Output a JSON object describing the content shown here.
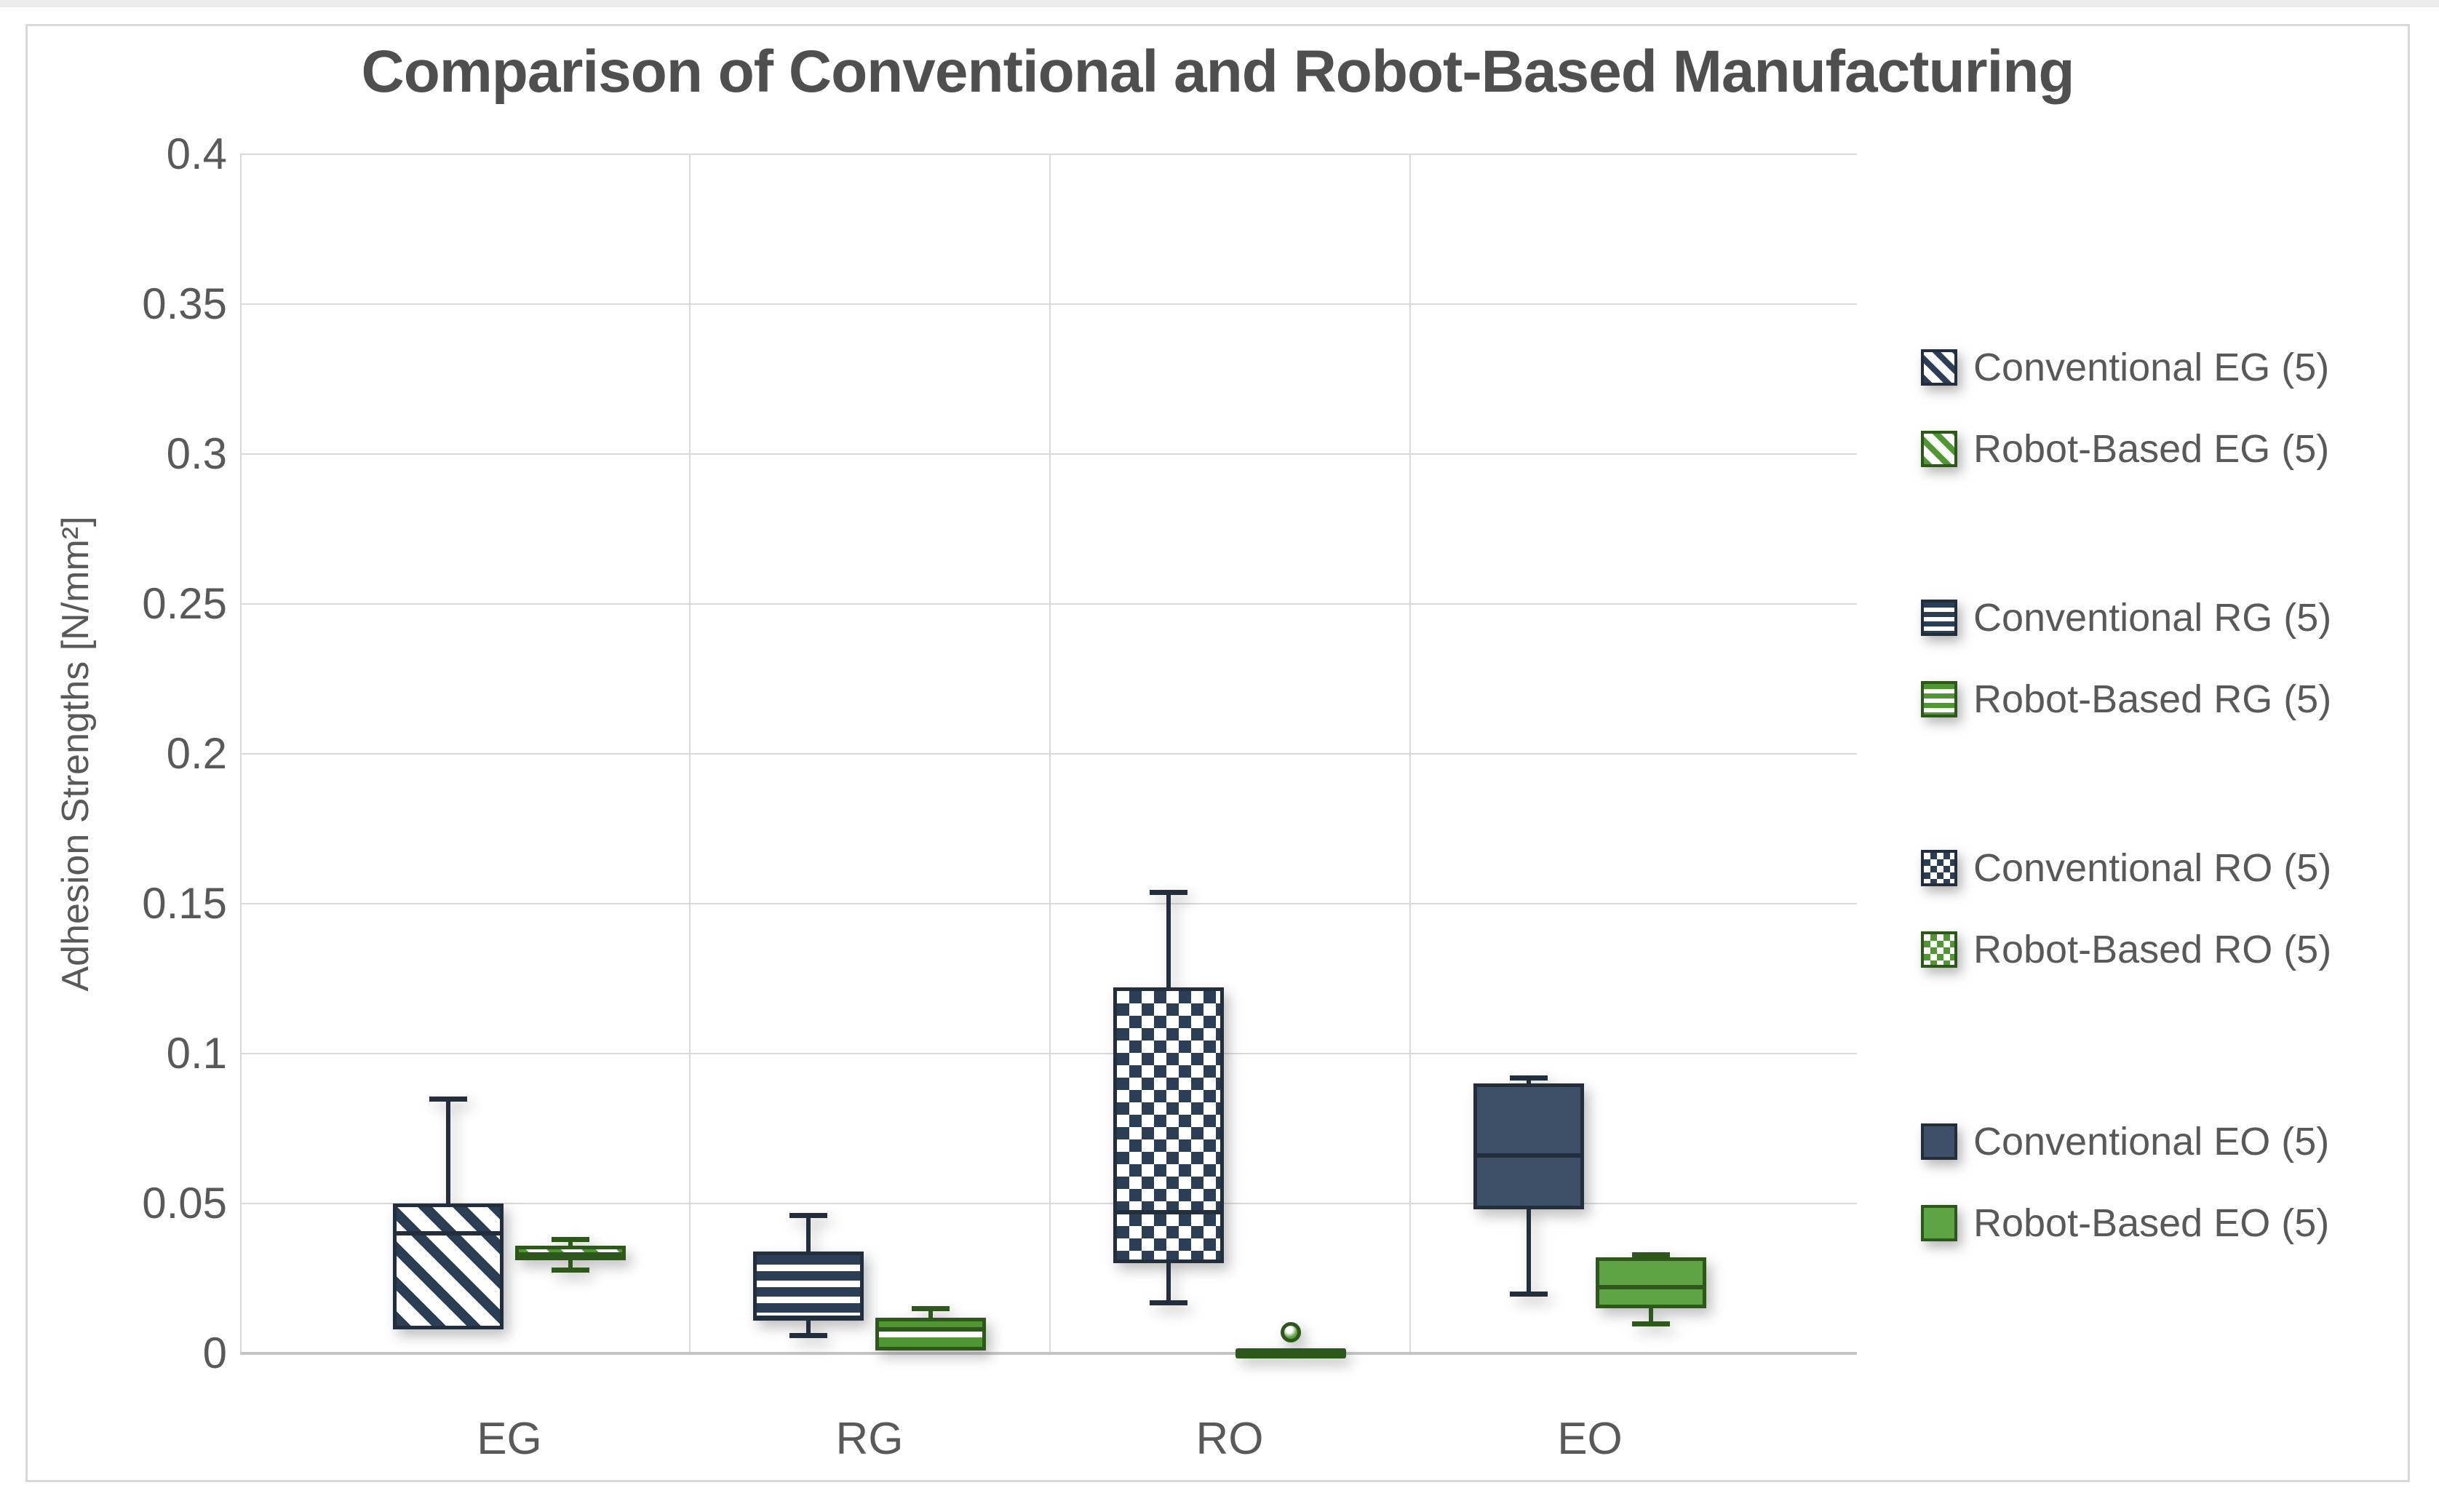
{
  "window": {
    "background_color": "#ffffff",
    "frame_border_color": "#d9d9d9"
  },
  "chart_data": {
    "type": "boxplot",
    "title": "Comparison of Conventional and Robot-Based Manufacturing",
    "xlabel": "",
    "ylabel": "Adhesion Strengths [N/mm²]",
    "ylim": [
      0,
      0.4
    ],
    "yticks": [
      {
        "value": 0.4,
        "label": "0.4"
      },
      {
        "value": 0.35,
        "label": "0.35"
      },
      {
        "value": 0.3,
        "label": "0.3"
      },
      {
        "value": 0.25,
        "label": "0.25"
      },
      {
        "value": 0.2,
        "label": "0.2"
      },
      {
        "value": 0.15,
        "label": "0.15"
      },
      {
        "value": 0.1,
        "label": "0.1"
      },
      {
        "value": 0.05,
        "label": "0.05"
      },
      {
        "value": 0,
        "label": "0"
      }
    ],
    "categories": [
      "EG",
      "RG",
      "RO",
      "EO"
    ],
    "grid": "on",
    "legend_position": "right",
    "colors": {
      "conventional": {
        "fill": "#3e5067",
        "pattern": "#2c3e55",
        "line": "#232e3d"
      },
      "robot": {
        "fill": "#5ea344",
        "pattern": "#4f9733",
        "line": "#2e571c"
      }
    },
    "text_color": "#595959",
    "gridline_color": "#d9d9d9",
    "groups": [
      {
        "category": "EG",
        "boxes": [
          {
            "legend": "Conventional EG (5)",
            "series": "conventional",
            "pattern": "diagonal",
            "whisker_low": null,
            "q1": 0.008,
            "median": 0.04,
            "q3": 0.05,
            "whisker_high": 0.085,
            "outliers": []
          },
          {
            "legend": "Robot-Based EG (5)",
            "series": "robot",
            "pattern": "diagonal",
            "whisker_low": 0.028,
            "q1": 0.031,
            "median": 0.033,
            "q3": 0.036,
            "whisker_high": 0.038,
            "outliers": []
          }
        ]
      },
      {
        "category": "RG",
        "boxes": [
          {
            "legend": "Conventional RG (5)",
            "series": "conventional",
            "pattern": "horizontal",
            "whisker_low": 0.006,
            "q1": 0.011,
            "median": 0.012,
            "q3": 0.034,
            "whisker_high": 0.046,
            "outliers": []
          },
          {
            "legend": "Robot-Based RG (5)",
            "series": "robot",
            "pattern": "horizontal",
            "whisker_low": null,
            "q1": 0.001,
            "median": 0.008,
            "q3": 0.012,
            "whisker_high": 0.015,
            "outliers": []
          }
        ]
      },
      {
        "category": "RO",
        "boxes": [
          {
            "legend": "Conventional RO (5)",
            "series": "conventional",
            "pattern": "checker",
            "whisker_low": 0.017,
            "q1": 0.03,
            "median": 0.047,
            "q3": 0.122,
            "whisker_high": 0.154,
            "outliers": []
          },
          {
            "legend": "Robot-Based RO (5)",
            "series": "robot",
            "pattern": "checker",
            "whisker_low": null,
            "q1": 0.0,
            "median": 0.0,
            "q3": 0.0,
            "whisker_high": null,
            "outliers": [
              0.007
            ]
          }
        ]
      },
      {
        "category": "EO",
        "boxes": [
          {
            "legend": "Conventional EO (5)",
            "series": "conventional",
            "pattern": "solid",
            "whisker_low": 0.02,
            "q1": 0.048,
            "median": 0.066,
            "q3": 0.09,
            "whisker_high": 0.092,
            "outliers": []
          },
          {
            "legend": "Robot-Based EO (5)",
            "series": "robot",
            "pattern": "solid",
            "whisker_low": 0.01,
            "q1": 0.015,
            "median": 0.022,
            "q3": 0.032,
            "whisker_high": 0.033,
            "outliers": []
          }
        ]
      }
    ]
  }
}
